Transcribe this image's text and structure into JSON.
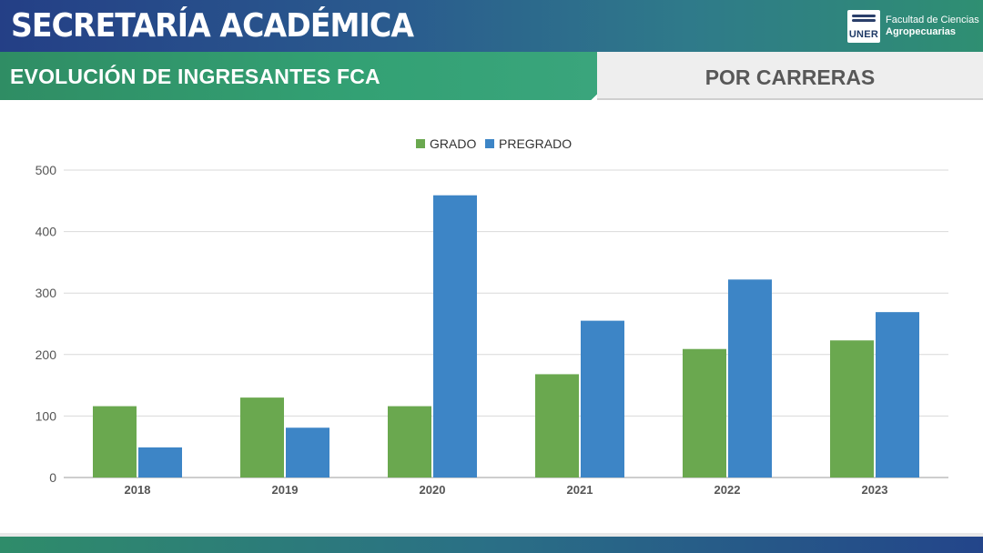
{
  "header": {
    "title": "SECRETARÍA ACADÉMICA",
    "logo_mark": "UNER",
    "logo_line1": "Facultad de Ciencias",
    "logo_line2": "Agropecuarias"
  },
  "subheader": {
    "left": "EVOLUCIÓN DE INGRESANTES FCA",
    "right": "POR CARRERAS"
  },
  "colors": {
    "grado": "#6aa84f",
    "pregrado": "#3d85c6"
  },
  "chart_data": {
    "type": "bar",
    "categories": [
      "2018",
      "2019",
      "2020",
      "2021",
      "2022",
      "2023"
    ],
    "series": [
      {
        "name": "GRADO",
        "values": [
          116,
          130,
          116,
          168,
          209,
          223
        ]
      },
      {
        "name": "PREGRADO",
        "values": [
          49,
          81,
          459,
          255,
          322,
          269
        ]
      }
    ],
    "ylim": [
      0,
      500
    ],
    "yticks": [
      0,
      100,
      200,
      300,
      400,
      500
    ],
    "grid": true,
    "legend_position": "top-center"
  }
}
